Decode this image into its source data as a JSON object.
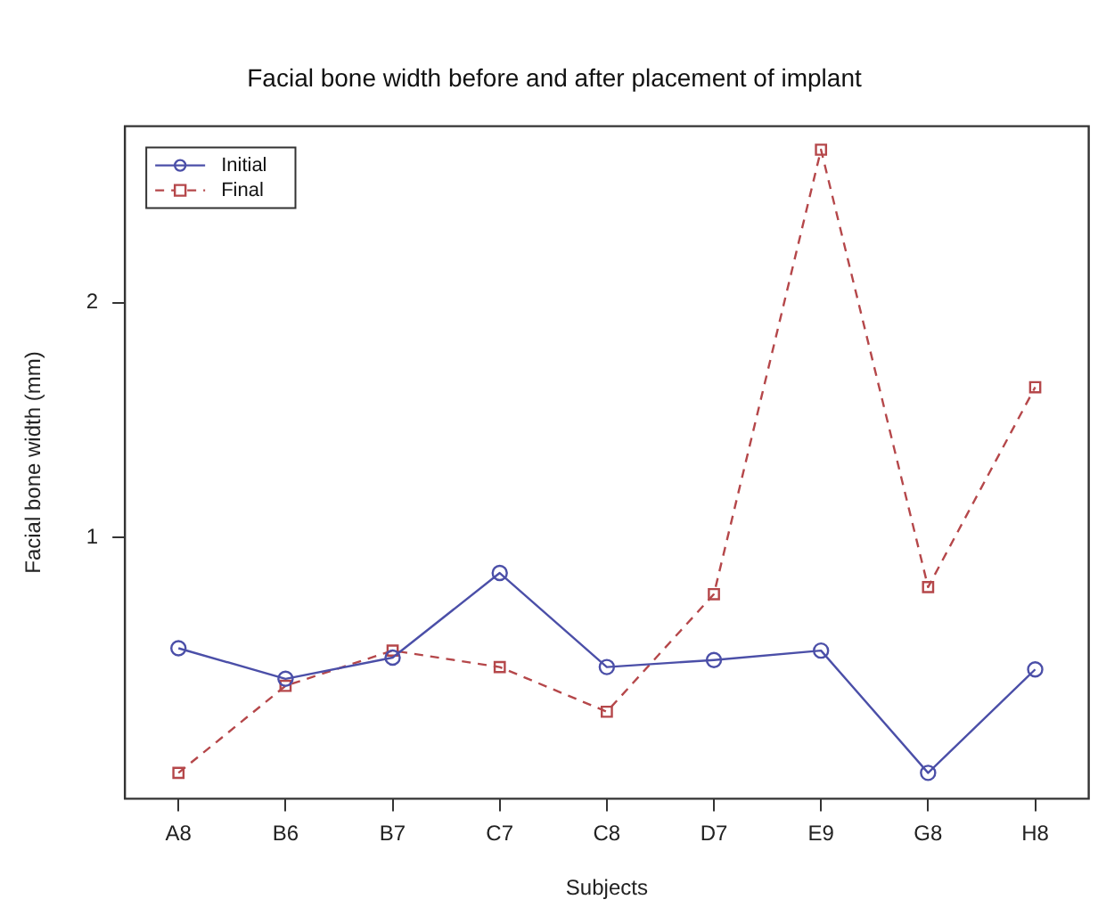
{
  "chart_data": {
    "type": "line",
    "title": "Facial bone width before and after placement of implant",
    "xlabel": "Subjects",
    "ylabel": "Facial bone width (mm)",
    "categories": [
      "A8",
      "B6",
      "B7",
      "C7",
      "C8",
      "D7",
      "E9",
      "G8",
      "H8"
    ],
    "series": [
      {
        "name": "Initial",
        "color": "#4b4fa8",
        "marker": "circle",
        "line_style": "solid",
        "values": [
          0.53,
          0.4,
          0.49,
          0.85,
          0.45,
          0.48,
          0.52,
          0.0,
          0.44
        ]
      },
      {
        "name": "Final",
        "color": "#b5474a",
        "marker": "square",
        "line_style": "dashed",
        "values": [
          0.0,
          0.37,
          0.52,
          0.45,
          0.26,
          0.76,
          2.65,
          0.79,
          1.64
        ]
      }
    ],
    "ylim": [
      -0.11,
      2.75
    ],
    "yticks": [
      1,
      2
    ],
    "grid": false,
    "legend": "top left"
  }
}
